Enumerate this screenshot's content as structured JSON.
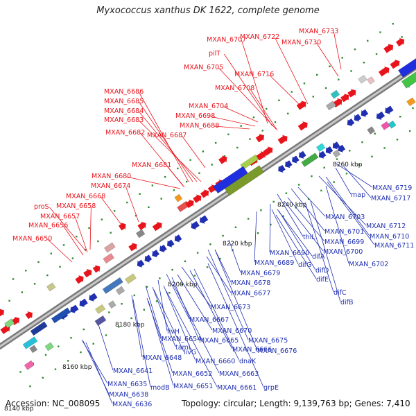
{
  "title": "Myxococcus xanthus DK 1622, complete genome",
  "footer": {
    "accession": "Accession: NC_008095",
    "topology": "Topology: circular; Length: 9,139,763 bp; Genes: 7,410"
  },
  "ticks": [
    "8140 kbp",
    "8160 kbp",
    "8180 kbp",
    "8200 kbp",
    "8220 kbp",
    "8240 kbp",
    "8260 kbp"
  ],
  "red_labels": [
    "MXAN_6733",
    "MXAN_6722",
    "MXAN_6730",
    "MXAN_6707",
    "pilT",
    "MXAN_6705",
    "MXAN_6716",
    "MXAN_6708",
    "MXAN_6686",
    "MXAN_6685",
    "MXAN_6684",
    "MXAN_6704",
    "MXAN_6683",
    "MXAN_6698",
    "MXAN_6688",
    "MXAN_6682",
    "MXAN_6687",
    "MXAN_6681",
    "MXAN_6680",
    "MXAN_6674",
    "MXAN_6668",
    "proS",
    "MXAN_6658",
    "MXAN_6657",
    "MXAN_6656",
    "MXAN_6650"
  ],
  "blue_labels": [
    "MXAN_6719",
    "map",
    "MXAN_6717",
    "MXAN_6703",
    "MXAN_6712",
    "MXAN_6701",
    "MXAN_6710",
    "thiL",
    "MXAN_6699",
    "MXAN_6711",
    "MXAN_6690",
    "MXAN_6700",
    "difA",
    "MXAN_6689",
    "difG",
    "MXAN_6702",
    "difD",
    "MXAN_6679",
    "difE",
    "MXAN_6678",
    "MXAN_6677",
    "difC",
    "difB",
    "MXAN_6673",
    "MXAN_6667",
    "livH",
    "MXAN_6670",
    "MXAN_6654",
    "MXAN_6665",
    "MXAN_6675",
    "tamL",
    "livG",
    "MXAN_6666",
    "MXAN_6676",
    "MXAN_6648",
    "MXAN_6660",
    "dnaK",
    "MXAN_6641",
    "MXAN_6652",
    "MXAN_6663",
    "MXAN_6635",
    "modB",
    "MXAN_6651",
    "MXAN_6661",
    "grpE",
    "MXAN_6638",
    "MXAN_6636"
  ],
  "colors": {
    "forward": "#e8141c",
    "reverse": "#1f2fb0",
    "backbone": "#909090"
  }
}
